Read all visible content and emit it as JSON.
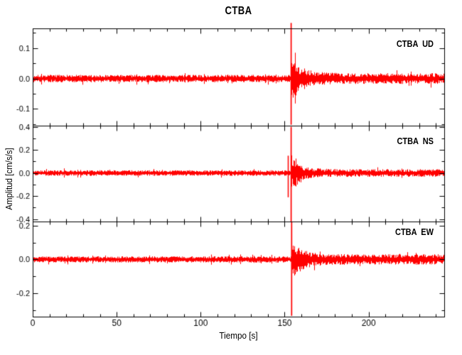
{
  "title": "CTBA",
  "colors": {
    "trace": "#ff0000",
    "axis": "#000000",
    "background": "#ffffff",
    "text": "#000000"
  },
  "chart_data": {
    "type": "line",
    "title": "CTBA",
    "xlabel": "Tiempo [s]",
    "ylabel": "Amplitud [cm/s/s]",
    "xlim": [
      0,
      245
    ],
    "x_major_ticks": [
      0,
      50,
      100,
      150,
      200
    ],
    "x_major_tick_labels": [
      "0",
      "50",
      "100",
      "150",
      "200"
    ],
    "x_minor_step": 10,
    "grid": false,
    "trace_color": "#ff0000",
    "legend_position": "top-right-inside",
    "panels": [
      {
        "label": "CTBA  UD",
        "station": "CTBA",
        "component": "UD",
        "ylim": [
          -0.155,
          0.165
        ],
        "y_major_ticks": [
          0.1,
          0,
          -0.1
        ],
        "y_tick_labels": [
          "0.1",
          "0.0",
          "-0.1"
        ],
        "y_minor_step": 0.05,
        "noise_amplitude": 0.011,
        "event": {
          "onset_s": 153.5,
          "spike_peak_up": 0.183,
          "spike_peak_down": -0.152,
          "coda_amplitude": 0.07,
          "coda_decay_s": 7,
          "tail_amplitude": 0.016
        },
        "seed": 7
      },
      {
        "label": "CTBA  NS",
        "station": "CTBA",
        "component": "NS",
        "ylim": [
          -0.42,
          0.41
        ],
        "y_major_ticks": [
          0.4,
          0.2,
          0,
          -0.2,
          -0.4
        ],
        "y_tick_labels": [
          "0.4",
          "0.2",
          "0.0",
          "-0.2",
          "-0.4"
        ],
        "y_minor_step": 0.1,
        "noise_amplitude": 0.022,
        "pre_spike": {
          "t_s": 151.8,
          "up": 0.15,
          "down": -0.21
        },
        "event": {
          "onset_s": 153.5,
          "spike_peak_up": 0.4,
          "spike_peak_down": -0.42,
          "coda_amplitude": 0.15,
          "coda_decay_s": 6,
          "tail_amplitude": 0.03
        },
        "seed": 13
      },
      {
        "label": "CTBA  EW",
        "station": "CTBA",
        "component": "EW",
        "ylim": [
          -0.34,
          0.225
        ],
        "y_major_ticks": [
          0.2,
          0,
          -0.2
        ],
        "y_tick_labels": [
          "0.2",
          "0.0",
          "-0.2"
        ],
        "y_minor_step": 0.1,
        "noise_amplitude": 0.017,
        "event": {
          "onset_s": 153.8,
          "spike_peak_up": 0.222,
          "spike_peak_down": -0.335,
          "coda_amplitude": 0.12,
          "coda_decay_s": 6,
          "tail_amplitude": 0.028
        },
        "seed": 21
      }
    ]
  }
}
